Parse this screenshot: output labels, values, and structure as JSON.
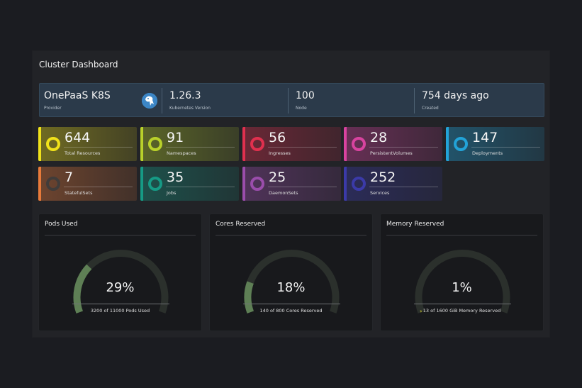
{
  "dashboard": {
    "title": "Cluster Dashboard"
  },
  "info": [
    {
      "value": "OnePaaS K8S",
      "label": "Provider",
      "logo": "kubernetes-logo-icon"
    },
    {
      "value": "1.26.3",
      "label": "Kubernetes Version"
    },
    {
      "value": "100",
      "label": "Node"
    },
    {
      "value": "754 days ago",
      "label": "Created"
    }
  ],
  "stats": [
    {
      "value": "644",
      "label": "Total Resources",
      "color": "#f0e21a"
    },
    {
      "value": "91",
      "label": "Namespaces",
      "color": "#b9d12a"
    },
    {
      "value": "56",
      "label": "Ingresses",
      "color": "#e0304e"
    },
    {
      "value": "28",
      "label": "PersistentVolumes",
      "color": "#d8439f"
    },
    {
      "value": "147",
      "label": "Deployments",
      "color": "#22a3d8"
    },
    {
      "value": "7",
      "label": "StatefulSets",
      "color": "#e87a3a"
    },
    {
      "value": "35",
      "label": "Jobs",
      "color": "#169a85"
    },
    {
      "value": "25",
      "label": "DaemonSets",
      "color": "#9a4dab"
    },
    {
      "value": "252",
      "label": "Services",
      "color": "#3b3aa8"
    }
  ],
  "gauges": [
    {
      "title": "Pods Used",
      "percent_text": "29%",
      "fraction": 0.29,
      "caption": "3200 of 11000 Pods Used"
    },
    {
      "title": "Cores Reserved",
      "percent_text": "18%",
      "fraction": 0.18,
      "caption": "140 of 800 Cores Reserved"
    },
    {
      "title": "Memory Reserved",
      "percent_text": "1%",
      "fraction": 0.01,
      "caption": "13 of 1600 GiB Memory Reserved"
    }
  ],
  "colors": {
    "gauge_track": "#2b302c",
    "gauge_fill": "#5e7f55",
    "memory_fill": "#8a8a2a"
  }
}
